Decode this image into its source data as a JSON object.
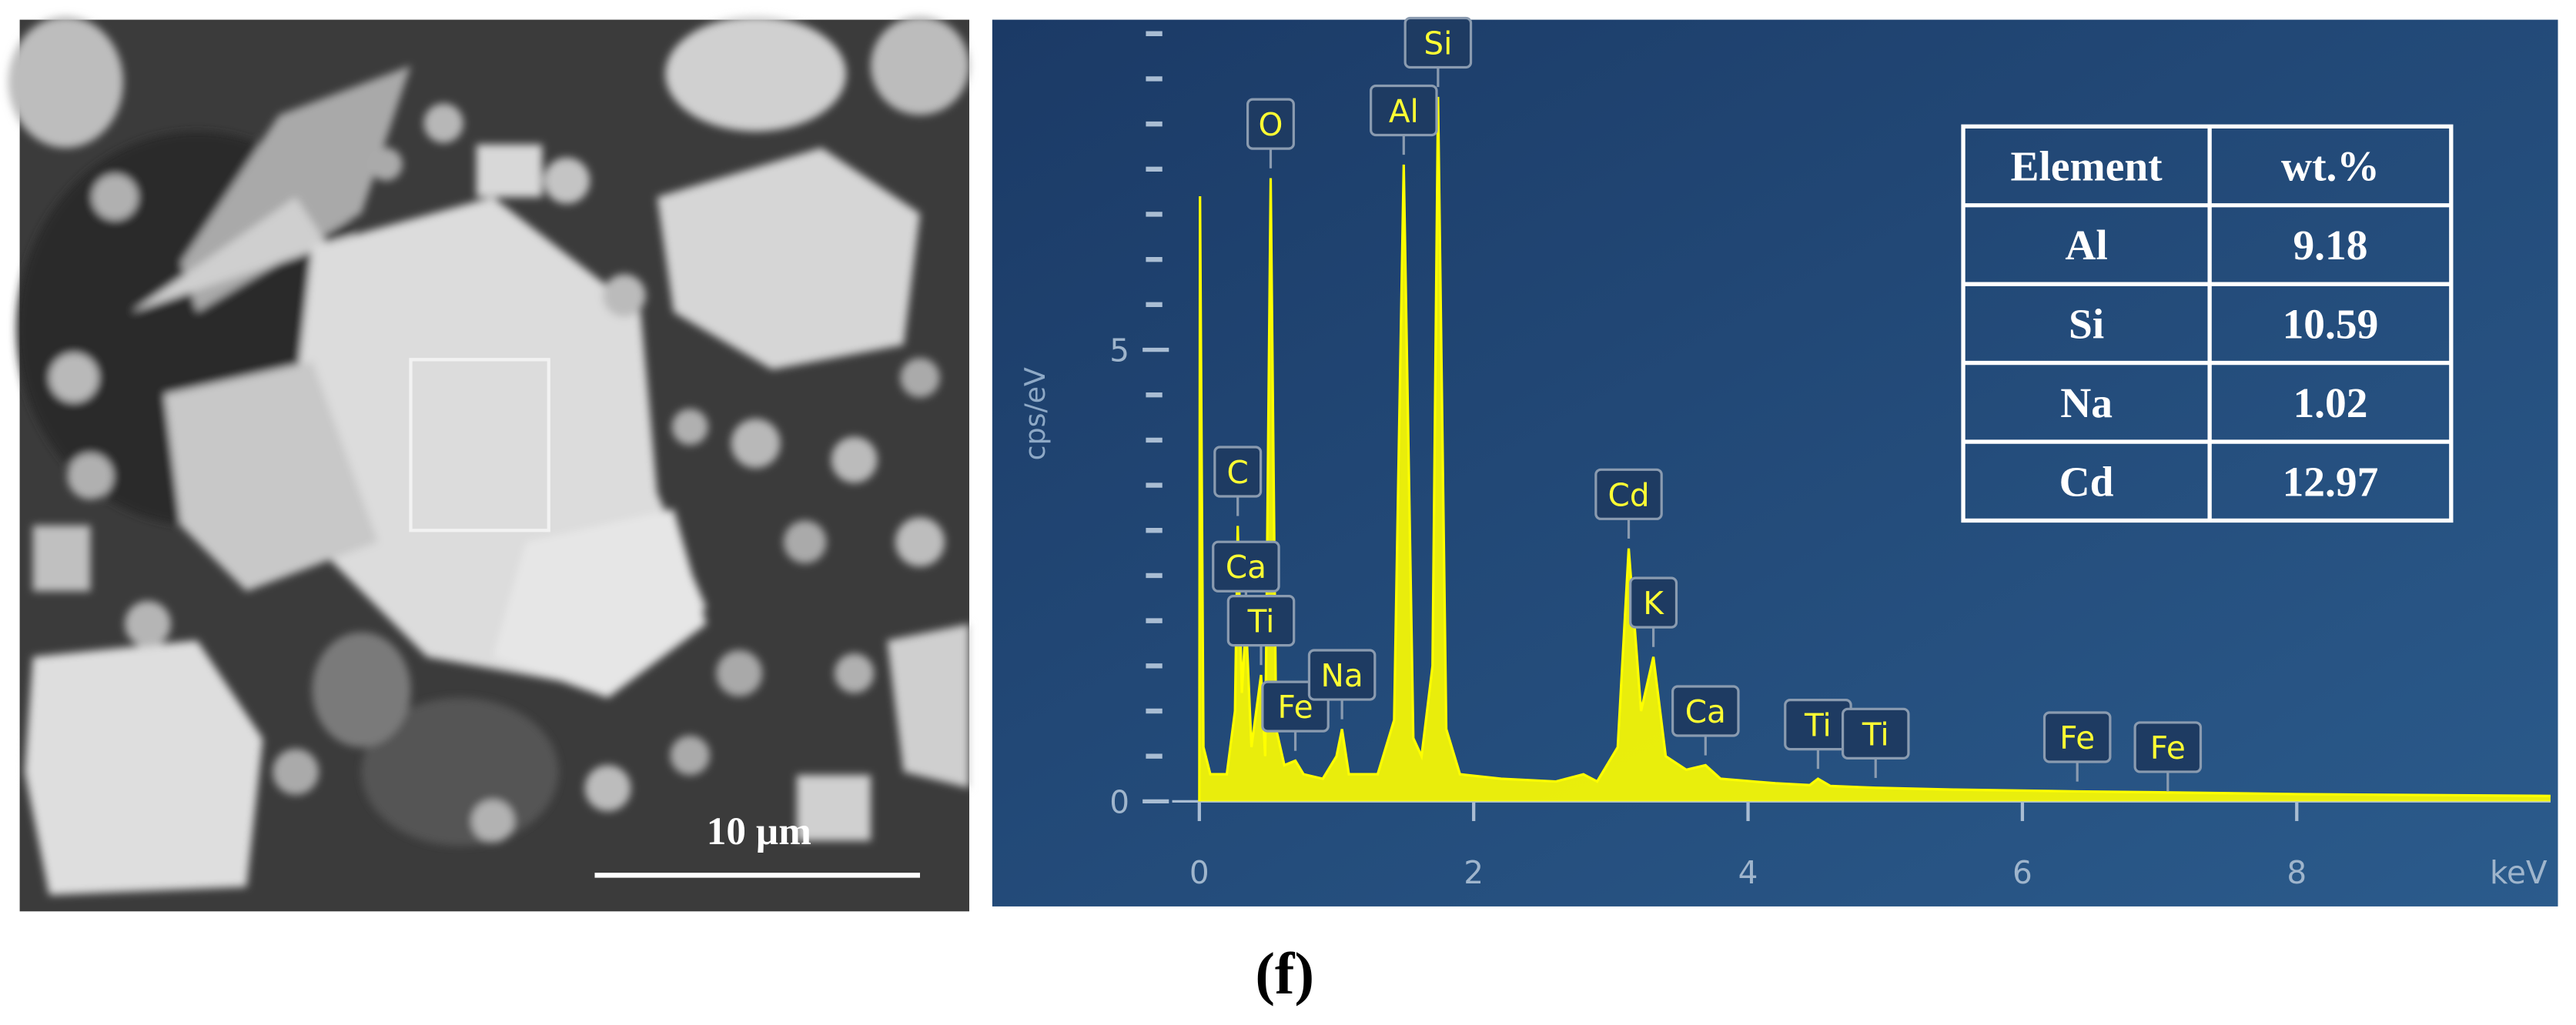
{
  "sem": {
    "scale_bar": "10 µm"
  },
  "chart_data": {
    "type": "spectrum",
    "x_label": "keV",
    "y_label": "cps/eV",
    "color": "#ffff00",
    "xlim": [
      -0.15,
      9.85
    ],
    "ylim": [
      0,
      8.6
    ],
    "xticks": [
      0,
      2,
      4,
      6,
      8
    ],
    "yticks": [
      0,
      5
    ],
    "yminorticks": [
      0.5,
      1,
      1.5,
      2,
      2.5,
      3,
      3.5,
      4,
      4.5,
      5.5,
      6,
      6.5,
      7,
      7.5,
      8,
      8.5
    ],
    "x": [
      0,
      0.005,
      0.03,
      0.08,
      0.2,
      0.26,
      0.28,
      0.31,
      0.34,
      0.38,
      0.45,
      0.48,
      0.52,
      0.56,
      0.62,
      0.7,
      0.76,
      0.9,
      1.0,
      1.04,
      1.09,
      1.3,
      1.42,
      1.49,
      1.56,
      1.62,
      1.7,
      1.74,
      1.8,
      1.9,
      2.2,
      2.6,
      2.8,
      2.9,
      3.05,
      3.13,
      3.22,
      3.31,
      3.4,
      3.55,
      3.69,
      3.8,
      4.2,
      4.45,
      4.51,
      4.6,
      4.93,
      5.5,
      6.4,
      7.0,
      8.0,
      9.85
    ],
    "values": [
      0,
      6.7,
      0.6,
      0.3,
      0.3,
      1.0,
      3.05,
      1.2,
      2.0,
      0.6,
      1.4,
      0.5,
      6.9,
      0.8,
      0.4,
      0.45,
      0.3,
      0.25,
      0.5,
      0.8,
      0.3,
      0.3,
      0.9,
      7.05,
      0.7,
      0.5,
      1.5,
      7.8,
      0.8,
      0.3,
      0.25,
      0.22,
      0.3,
      0.22,
      0.6,
      2.8,
      1.0,
      1.6,
      0.5,
      0.35,
      0.4,
      0.25,
      0.2,
      0.18,
      0.25,
      0.17,
      0.15,
      0.13,
      0.11,
      0.1,
      0.08,
      0.06
    ],
    "peak_labels": [
      {
        "text": "C",
        "x": 0.28
      },
      {
        "text": "Ca",
        "x": 0.34
      },
      {
        "text": "Ti",
        "x": 0.45
      },
      {
        "text": "O",
        "x": 0.52
      },
      {
        "text": "Fe",
        "x": 0.7
      },
      {
        "text": "Na",
        "x": 1.04
      },
      {
        "text": "Al",
        "x": 1.49
      },
      {
        "text": "Si",
        "x": 1.74
      },
      {
        "text": "Cd",
        "x": 3.13
      },
      {
        "text": "K",
        "x": 3.31
      },
      {
        "text": "Ca",
        "x": 3.69
      },
      {
        "text": "Ti",
        "x": 4.51
      },
      {
        "text": "Ti",
        "x": 4.93
      },
      {
        "text": "Fe",
        "x": 6.4
      },
      {
        "text": "Fe",
        "x": 7.06
      }
    ]
  },
  "table": {
    "header": [
      "Element",
      "wt.%"
    ],
    "rows": [
      [
        "Al",
        "9.18"
      ],
      [
        "Si",
        "10.59"
      ],
      [
        "Na",
        "1.02"
      ],
      [
        "Cd",
        "12.97"
      ]
    ]
  },
  "caption": "(f)"
}
